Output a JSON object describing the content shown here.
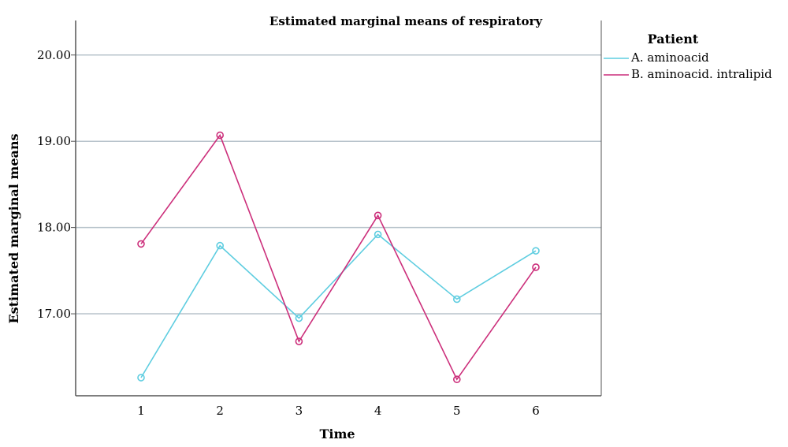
{
  "chart_data": {
    "type": "line",
    "title": "Estimated marginal means of respiratory",
    "xlabel": "Time",
    "ylabel": "Estimated marginal means",
    "categories": [
      "1",
      "2",
      "3",
      "4",
      "5",
      "6"
    ],
    "y_ticks": [
      "17.00",
      "18.00",
      "19.00",
      "20.00"
    ],
    "ylim": [
      16.05,
      20.4
    ],
    "grid": "horizontal",
    "legend": {
      "title": "Patient",
      "placement": "right"
    },
    "series": [
      {
        "name": "A. aminoacid",
        "color": "#5ecde0",
        "values": [
          16.26,
          17.79,
          16.95,
          17.92,
          17.17,
          17.73
        ]
      },
      {
        "name": "B. aminoacid. intralipid",
        "color": "#cc2f7b",
        "values": [
          17.81,
          19.07,
          16.68,
          18.14,
          16.24,
          17.54
        ]
      }
    ]
  }
}
